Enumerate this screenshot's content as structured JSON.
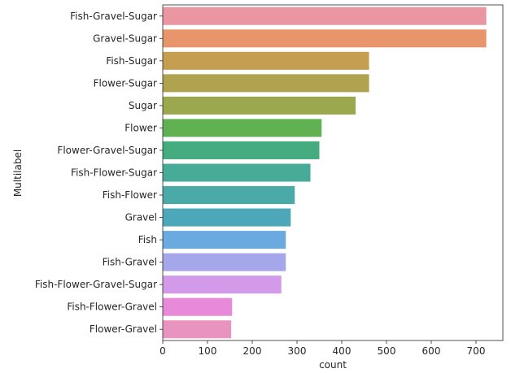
{
  "chart_data": {
    "type": "bar",
    "orientation": "horizontal",
    "xlabel": "count",
    "ylabel": "Multilabel",
    "xlim": [
      0,
      760
    ],
    "xticks": [
      0,
      100,
      200,
      300,
      400,
      500,
      600,
      700
    ],
    "grid": false,
    "categories": [
      "Fish-Gravel-Sugar",
      "Gravel-Sugar",
      "Fish-Sugar",
      "Flower-Sugar",
      "Sugar",
      "Flower",
      "Flower-Gravel-Sugar",
      "Fish-Flower-Sugar",
      "Fish-Flower",
      "Gravel",
      "Fish",
      "Fish-Gravel",
      "Fish-Flower-Gravel-Sugar",
      "Fish-Flower-Gravel",
      "Flower-Gravel"
    ],
    "values": [
      723,
      723,
      461,
      461,
      431,
      355,
      350,
      330,
      295,
      286,
      275,
      275,
      265,
      155,
      153
    ],
    "colors": [
      "#ea96a3",
      "#e9956b",
      "#c59e51",
      "#b0a34f",
      "#9ca84d",
      "#61b152",
      "#45ac7f",
      "#48ab97",
      "#49aaa7",
      "#4ca8b9",
      "#6aaae1",
      "#a6a7ea",
      "#d39aea",
      "#e989d9",
      "#e994c0"
    ]
  }
}
